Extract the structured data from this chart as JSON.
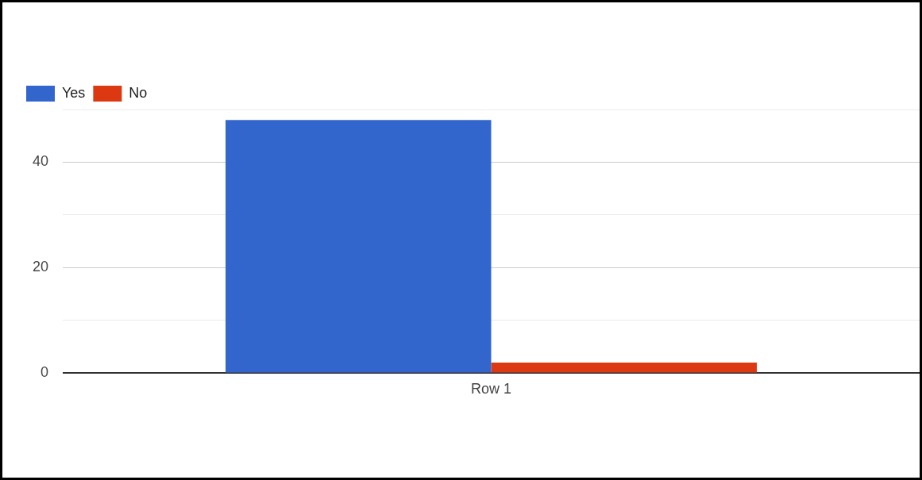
{
  "chart_data": {
    "type": "bar",
    "categories": [
      "Row 1"
    ],
    "series": [
      {
        "name": "Yes",
        "color": "#3366cc",
        "values": [
          48
        ]
      },
      {
        "name": "No",
        "color": "#dc3912",
        "values": [
          2
        ]
      }
    ],
    "ylim": [
      0,
      50
    ],
    "yticks": [
      0,
      {
        "value": 10,
        "label": null
      },
      20,
      {
        "value": 30,
        "label": null
      },
      40,
      {
        "value": 50,
        "label": null
      }
    ],
    "grid": "y",
    "legend": "top left"
  }
}
